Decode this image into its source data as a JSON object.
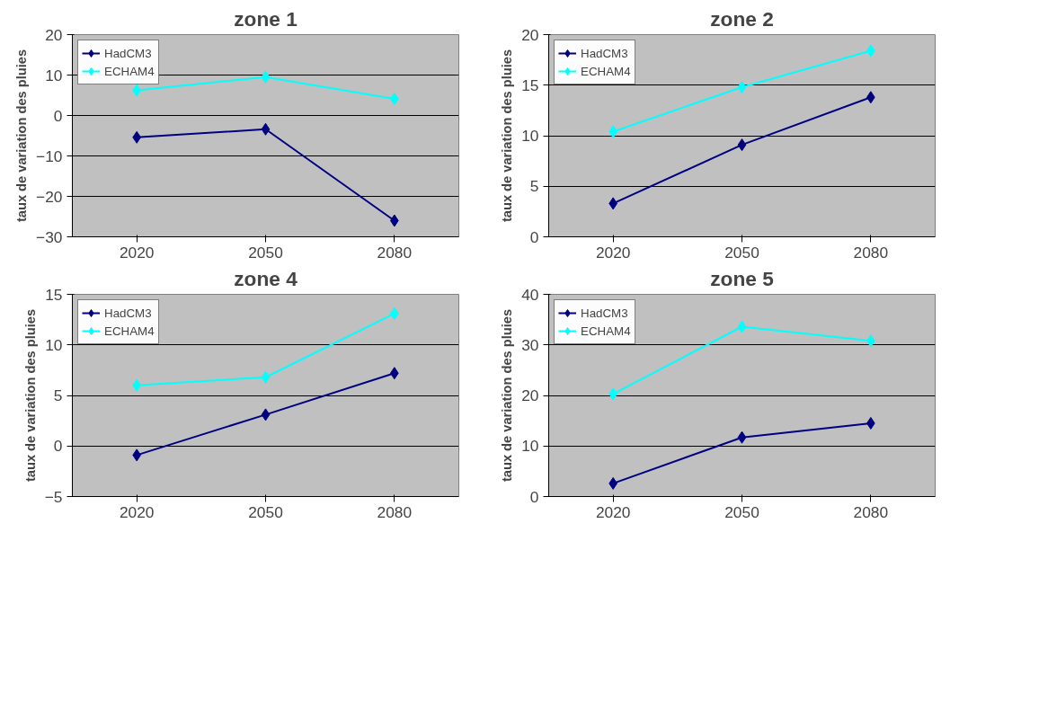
{
  "chart_data": [
    {
      "type": "line",
      "title": "zone 1",
      "ylabel": "taux de variation des pluies",
      "categories": [
        "2020",
        "2050",
        "2080"
      ],
      "ylim": [
        -30,
        20
      ],
      "yticks": [
        -30,
        -20,
        -10,
        0,
        10,
        20
      ],
      "grid": "y",
      "legend": "top left",
      "marker": "diamond",
      "line_style": "solid",
      "series": [
        {
          "name": "HadCM3",
          "color": "#000080",
          "values": [
            -5.4,
            -3.4,
            -26
          ]
        },
        {
          "name": "ECHAM4",
          "color": "#00ffff",
          "values": [
            6.2,
            9.5,
            4.1
          ]
        }
      ]
    },
    {
      "type": "line",
      "title": "zone 2",
      "ylabel": "taux de variation des pluies",
      "categories": [
        "2020",
        "2050",
        "2080"
      ],
      "ylim": [
        0,
        20
      ],
      "yticks": [
        0,
        5,
        10,
        15,
        20
      ],
      "grid": "y",
      "legend": "top left",
      "marker": "diamond",
      "line_style": "solid",
      "series": [
        {
          "name": "HadCM3",
          "color": "#000080",
          "values": [
            3.3,
            9.1,
            13.8
          ]
        },
        {
          "name": "ECHAM4",
          "color": "#00ffff",
          "values": [
            10.4,
            14.8,
            18.4
          ]
        }
      ]
    },
    {
      "type": "line",
      "title": "zone 4",
      "ylabel": "taux de variation des pluies",
      "categories": [
        "2020",
        "2050",
        "2080"
      ],
      "ylim": [
        -5,
        15
      ],
      "yticks": [
        -5,
        0,
        5,
        10,
        15
      ],
      "grid": "y",
      "legend": "top left",
      "marker": "diamond",
      "line_style": "solid",
      "series": [
        {
          "name": "HadCM3",
          "color": "#000080",
          "values": [
            -0.9,
            3.1,
            7.2
          ]
        },
        {
          "name": "ECHAM4",
          "color": "#00ffff",
          "values": [
            6.0,
            6.8,
            13.1
          ]
        }
      ]
    },
    {
      "type": "line",
      "title": "zone 5",
      "ylabel": "taux de variation des pluies",
      "categories": [
        "2020",
        "2050",
        "2080"
      ],
      "ylim": [
        0,
        40
      ],
      "yticks": [
        0,
        10,
        20,
        30,
        40
      ],
      "grid": "y",
      "legend": "top left",
      "marker": "diamond",
      "line_style": "solid",
      "series": [
        {
          "name": "HadCM3",
          "color": "#000080",
          "values": [
            2.6,
            11.7,
            14.5
          ]
        },
        {
          "name": "ECHAM4",
          "color": "#00ffff",
          "values": [
            20.3,
            33.6,
            30.8
          ]
        }
      ]
    }
  ]
}
